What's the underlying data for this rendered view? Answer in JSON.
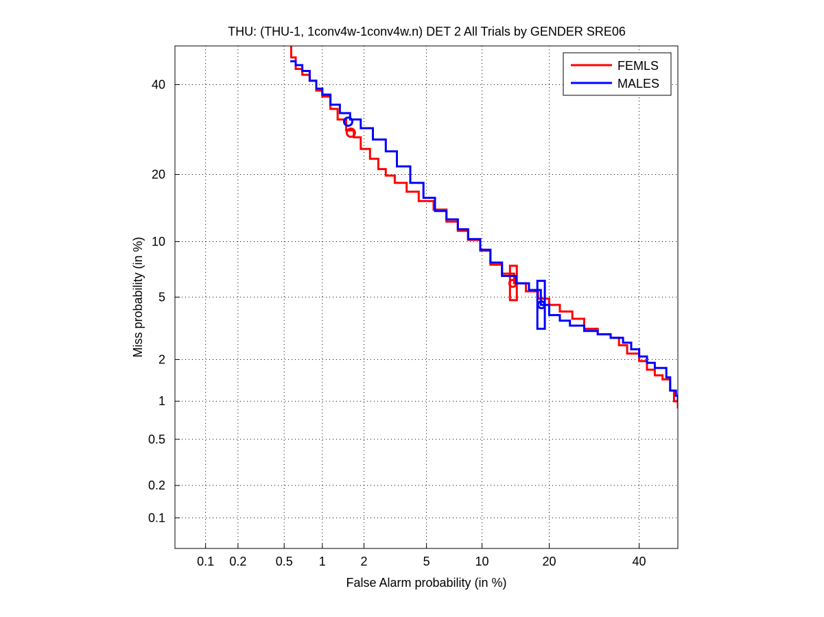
{
  "chart_data": {
    "type": "line",
    "title": "THU: (THU-1, 1conv4w-1conv4w.n) DET 2 All Trials by GENDER SRE06",
    "xlabel": "False Alarm probability (in %)",
    "ylabel": "Miss probability (in %)",
    "x_scale": "normal-deviate",
    "y_scale": "normal-deviate",
    "xlim": [
      0.05,
      50
    ],
    "ylim": [
      0.05,
      50
    ],
    "x_ticks": [
      0.1,
      0.2,
      0.5,
      1,
      2,
      5,
      10,
      20,
      40
    ],
    "x_tick_labels": [
      "0.1",
      "0.2",
      "0.5",
      "1",
      "2",
      "5",
      "10",
      "20",
      "40"
    ],
    "y_ticks": [
      0.1,
      0.2,
      0.5,
      1,
      2,
      5,
      10,
      20,
      40
    ],
    "y_tick_labels": [
      "0.1",
      "0.2",
      "0.5",
      "1",
      "2",
      "5",
      "10",
      "20",
      "40"
    ],
    "grid": true,
    "legend_position": "top-right",
    "series": [
      {
        "name": "FEMLS",
        "color": "#ff0000",
        "points": [
          [
            0.56,
            50
          ],
          [
            0.57,
            47
          ],
          [
            0.62,
            44
          ],
          [
            0.7,
            42.5
          ],
          [
            0.8,
            41
          ],
          [
            0.9,
            38.5
          ],
          [
            1.0,
            37
          ],
          [
            1.15,
            34
          ],
          [
            1.3,
            31.5
          ],
          [
            1.5,
            29
          ],
          [
            1.7,
            27.5
          ],
          [
            1.9,
            25
          ],
          [
            2.2,
            23
          ],
          [
            2.5,
            21
          ],
          [
            2.8,
            19.8
          ],
          [
            3.2,
            18.5
          ],
          [
            3.8,
            17
          ],
          [
            4.5,
            15.5
          ],
          [
            5.5,
            14.2
          ],
          [
            6.5,
            12.5
          ],
          [
            7.5,
            11.3
          ],
          [
            8.5,
            10.2
          ],
          [
            9.8,
            9.0
          ],
          [
            11,
            7.6
          ],
          [
            12.5,
            6.8
          ],
          [
            14.2,
            6.0
          ],
          [
            16,
            5.4
          ],
          [
            18,
            4.9
          ],
          [
            20,
            4.5
          ],
          [
            22,
            4.1
          ],
          [
            24.5,
            3.7
          ],
          [
            27,
            3.2
          ],
          [
            30,
            2.95
          ],
          [
            33,
            2.8
          ],
          [
            35,
            2.5
          ],
          [
            37,
            2.2
          ],
          [
            40,
            1.95
          ],
          [
            42,
            1.7
          ],
          [
            44,
            1.55
          ],
          [
            46,
            1.45
          ],
          [
            48,
            1.2
          ],
          [
            49,
            1.0
          ],
          [
            50,
            0.88
          ]
        ],
        "operating_point_actual": {
          "x": 1.62,
          "y": 28.5
        },
        "operating_point_min": {
          "x": 14.0,
          "y": 6.0
        },
        "ci_box": {
          "x": [
            13.6,
            14.6
          ],
          "y": [
            4.8,
            7.5
          ]
        }
      },
      {
        "name": "MALES",
        "color": "#0000ff",
        "points": [
          [
            0.56,
            46
          ],
          [
            0.62,
            45
          ],
          [
            0.7,
            43.5
          ],
          [
            0.8,
            41
          ],
          [
            0.9,
            39
          ],
          [
            1.0,
            37.5
          ],
          [
            1.15,
            35
          ],
          [
            1.35,
            33
          ],
          [
            1.6,
            31.5
          ],
          [
            1.9,
            29.5
          ],
          [
            2.3,
            27
          ],
          [
            2.8,
            24.5
          ],
          [
            3.3,
            21.5
          ],
          [
            4.0,
            18.5
          ],
          [
            4.8,
            16
          ],
          [
            5.6,
            14
          ],
          [
            6.5,
            12.8
          ],
          [
            7.5,
            11.5
          ],
          [
            8.5,
            10.3
          ],
          [
            9.8,
            9.1
          ],
          [
            11,
            7.8
          ],
          [
            12.5,
            6.6
          ],
          [
            14.5,
            6.0
          ],
          [
            16.5,
            5.5
          ],
          [
            18.5,
            4.5
          ],
          [
            20,
            3.9
          ],
          [
            22,
            3.6
          ],
          [
            24,
            3.35
          ],
          [
            27,
            3.1
          ],
          [
            30,
            2.95
          ],
          [
            33,
            2.8
          ],
          [
            36,
            2.6
          ],
          [
            38,
            2.35
          ],
          [
            40,
            2.1
          ],
          [
            42,
            1.9
          ],
          [
            44,
            1.75
          ],
          [
            47,
            1.5
          ],
          [
            48,
            1.2
          ],
          [
            49.5,
            1.1
          ],
          [
            50,
            1.0
          ]
        ],
        "operating_point_actual": {
          "x": 1.55,
          "y": 31.0
        },
        "operating_point_min": {
          "x": 18.6,
          "y": 4.5
        },
        "ci_box": {
          "x": [
            17.9,
            19.2
          ],
          "y": [
            3.2,
            6.2
          ]
        }
      }
    ]
  }
}
